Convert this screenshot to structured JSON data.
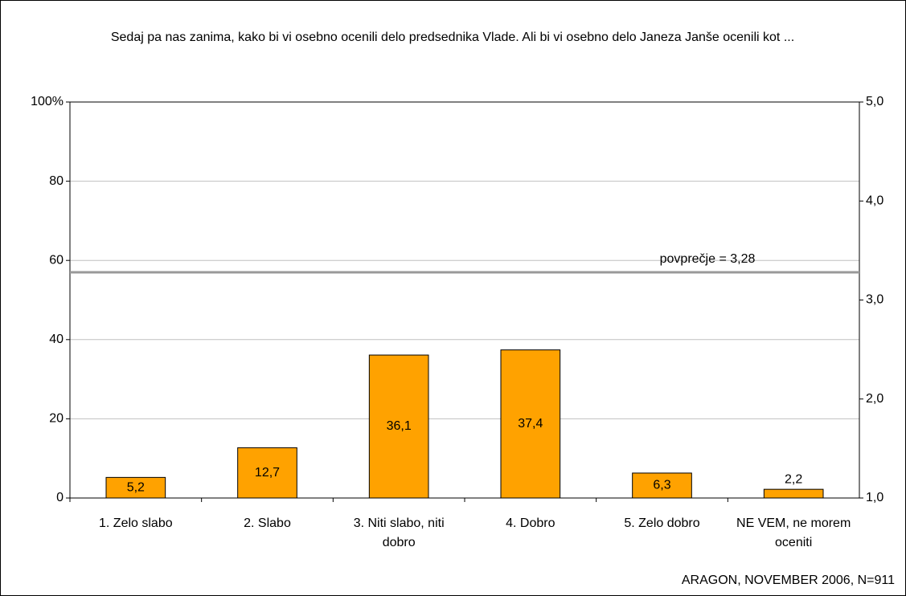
{
  "chart_data": {
    "type": "bar",
    "title": "Sedaj pa nas zanima, kako bi vi osebno ocenili delo predsednika Vlade. Ali bi vi osebno delo Janeza Janše ocenili kot ...",
    "categories": [
      "1. Zelo slabo",
      "2. Slabo",
      "3. Niti slabo, niti dobro",
      "4. Dobro",
      "5. Zelo dobro",
      "NE VEM, ne morem oceniti"
    ],
    "values": [
      5.2,
      12.7,
      36.1,
      37.4,
      6.3,
      2.2
    ],
    "value_labels": [
      "5,2",
      "12,7",
      "36,1",
      "37,4",
      "6,3",
      "2,2"
    ],
    "color": "#ffa200",
    "ylim": [
      0,
      100
    ],
    "yticks": [
      0,
      20,
      40,
      60,
      80,
      {
        "value": 100,
        "label": "100%"
      }
    ],
    "y2lim": [
      1,
      5
    ],
    "y2ticks": [
      {
        "value": 1,
        "label": "1,0"
      },
      {
        "value": 2,
        "label": "2,0"
      },
      {
        "value": 3,
        "label": "3,0"
      },
      {
        "value": 4,
        "label": "4,0"
      },
      {
        "value": 5,
        "label": "5,0"
      }
    ],
    "grid": true,
    "average_line": {
      "value": 3.28,
      "label": "povprečje = 3,28",
      "axis": "y2",
      "color": "#999999"
    },
    "source": "ARAGON, NOVEMBER 2006, N=911"
  }
}
